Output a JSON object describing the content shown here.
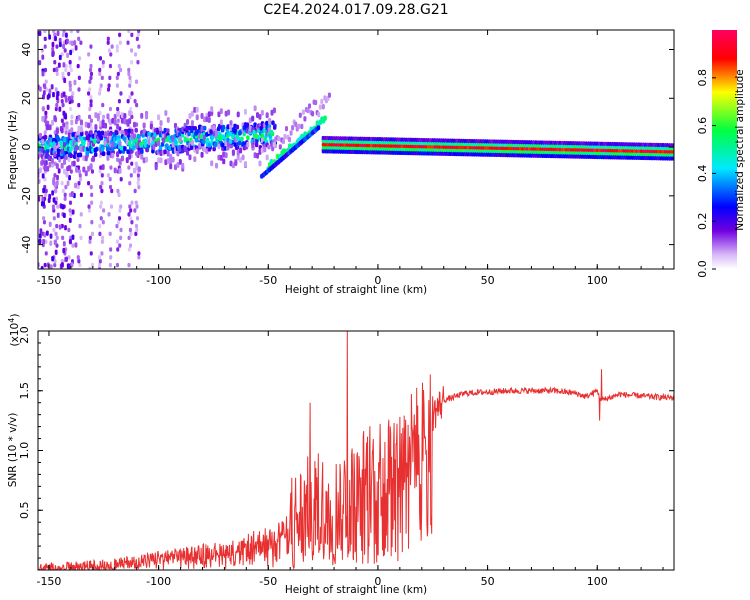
{
  "chart_data": [
    {
      "id": "spectrogram",
      "type": "heatmap",
      "title": "C2E4.2024.017.09.28.G21",
      "xlabel": "Height of straight line (km)",
      "ylabel": "Frequency (Hz)",
      "xlim": [
        -155,
        135
      ],
      "ylim": [
        -50,
        48
      ],
      "xticks": [
        -150,
        -100,
        -50,
        0,
        50,
        100
      ],
      "yticks": [
        -40,
        -20,
        0,
        20,
        40
      ],
      "colorbar": {
        "label": "Normalized spectral amplitude",
        "range": [
          0,
          1
        ],
        "ticks": [
          0.0,
          0.2,
          0.4,
          0.6,
          0.8
        ],
        "tick_labels": [
          "0.0",
          "0.2",
          "0.4",
          "0.6",
          "0.8"
        ],
        "colors": [
          "#ffffff",
          "#d8b8f8",
          "#7000e0",
          "#0000ff",
          "#00e8ff",
          "#00ff40",
          "#ffff00",
          "#ff0000",
          "#ff0060"
        ]
      },
      "features": [
        {
          "name": "dispersed noise",
          "x_range": [
            -155,
            -110
          ],
          "freq_range": [
            -50,
            48
          ],
          "amplitude": 0.1
        },
        {
          "name": "main band",
          "x_range": [
            -155,
            -47
          ],
          "freq_center_start": 0,
          "freq_center_end": 5,
          "width_hz": 6,
          "amplitude": 0.45
        },
        {
          "name": "rising line",
          "x_range": [
            -50,
            -24
          ],
          "freq_start": -8,
          "freq_end": 12,
          "amplitude": 0.55
        },
        {
          "name": "strong tone",
          "x_range": [
            -25,
            135
          ],
          "freq_center_start": 1,
          "freq_center_end": -2,
          "amplitude": 0.9
        }
      ]
    },
    {
      "id": "snr",
      "type": "line",
      "xlabel": "Height of straight line (km)",
      "ylabel": "SNR (10 * v/v)",
      "multiplier_label": "(x10",
      "multiplier_exponent": "4",
      "multiplier_close": ")",
      "xlim": [
        -155,
        135
      ],
      "ylim": [
        0,
        2.0
      ],
      "xticks": [
        -150,
        -100,
        -50,
        0,
        50,
        100
      ],
      "yticks": [
        0.5,
        1.0,
        1.5,
        2.0
      ],
      "ytick_labels": [
        "0.5",
        "1.0",
        "1.5",
        "2.0"
      ],
      "series": [
        {
          "name": "SNR",
          "color": "#e83030",
          "x": [
            -155,
            -140,
            -120,
            -100,
            -80,
            -70,
            -60,
            -50,
            -40,
            -30,
            -20,
            -14,
            -10,
            -5,
            0,
            10,
            20,
            25,
            30,
            40,
            60,
            80,
            90,
            95,
            100,
            102,
            110,
            125,
            135
          ],
          "y": [
            0.02,
            0.03,
            0.05,
            0.1,
            0.15,
            0.17,
            0.19,
            0.25,
            0.35,
            0.55,
            0.5,
            0.65,
            0.6,
            0.8,
            0.85,
            0.95,
            1.15,
            1.3,
            1.42,
            1.48,
            1.5,
            1.5,
            1.48,
            1.45,
            1.5,
            1.42,
            1.47,
            1.45,
            1.44
          ]
        }
      ],
      "spikes": [
        {
          "x": -14,
          "y": 2.0
        },
        {
          "x": -31,
          "y": 1.4
        },
        {
          "x": 102,
          "y": 1.68
        },
        {
          "x": 101,
          "y": 1.25
        }
      ]
    }
  ]
}
